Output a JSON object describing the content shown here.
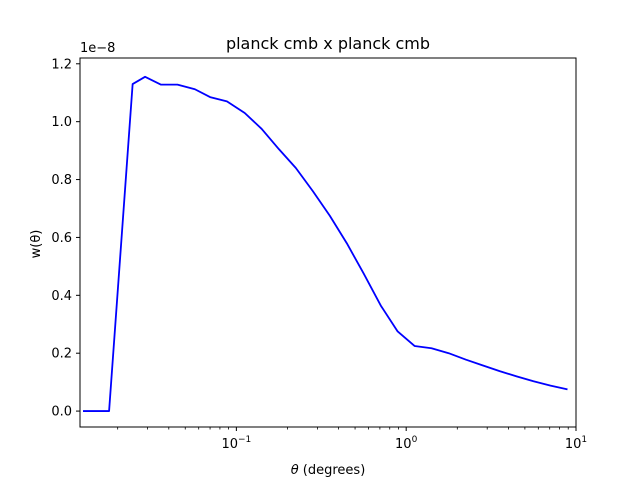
{
  "chart_data": {
    "type": "line",
    "title": "planck cmb x planck cmb",
    "xlabel_symbol": "θ",
    "xlabel_text": " (degrees)",
    "ylabel": "w(θ)",
    "y_offset_label": "1e−8",
    "xscale": "log",
    "xlim": [
      0.012,
      10
    ],
    "ylim": [
      -0.055,
      1.22
    ],
    "grid": false,
    "x_ticks": [
      {
        "value": 0.1,
        "base": "10",
        "exp": "−1"
      },
      {
        "value": 1,
        "base": "10",
        "exp": "0"
      },
      {
        "value": 10,
        "base": "10",
        "exp": "1"
      }
    ],
    "y_ticks": [
      {
        "value": 0.0,
        "label": "0.0"
      },
      {
        "value": 0.2,
        "label": "0.2"
      },
      {
        "value": 0.4,
        "label": "0.4"
      },
      {
        "value": 0.6,
        "label": "0.6"
      },
      {
        "value": 0.8,
        "label": "0.8"
      },
      {
        "value": 1.0,
        "label": "1.0"
      },
      {
        "value": 1.2,
        "label": "1.2"
      }
    ],
    "series": [
      {
        "color": "#0000ff",
        "x": [
          0.0125,
          0.0178,
          0.0245,
          0.029,
          0.036,
          0.045,
          0.057,
          0.07,
          0.088,
          0.112,
          0.141,
          0.178,
          0.224,
          0.282,
          0.355,
          0.447,
          0.562,
          0.708,
          0.891,
          1.12,
          1.41,
          1.78,
          2.24,
          2.82,
          3.55,
          4.47,
          5.62,
          7.08,
          8.91
        ],
        "y": [
          0.0,
          0.0,
          1.13,
          1.155,
          1.128,
          1.128,
          1.112,
          1.085,
          1.07,
          1.03,
          0.975,
          0.905,
          0.84,
          0.76,
          0.675,
          0.58,
          0.475,
          0.365,
          0.275,
          0.225,
          0.217,
          0.2,
          0.178,
          0.158,
          0.138,
          0.12,
          0.103,
          0.088,
          0.075
        ]
      }
    ]
  }
}
